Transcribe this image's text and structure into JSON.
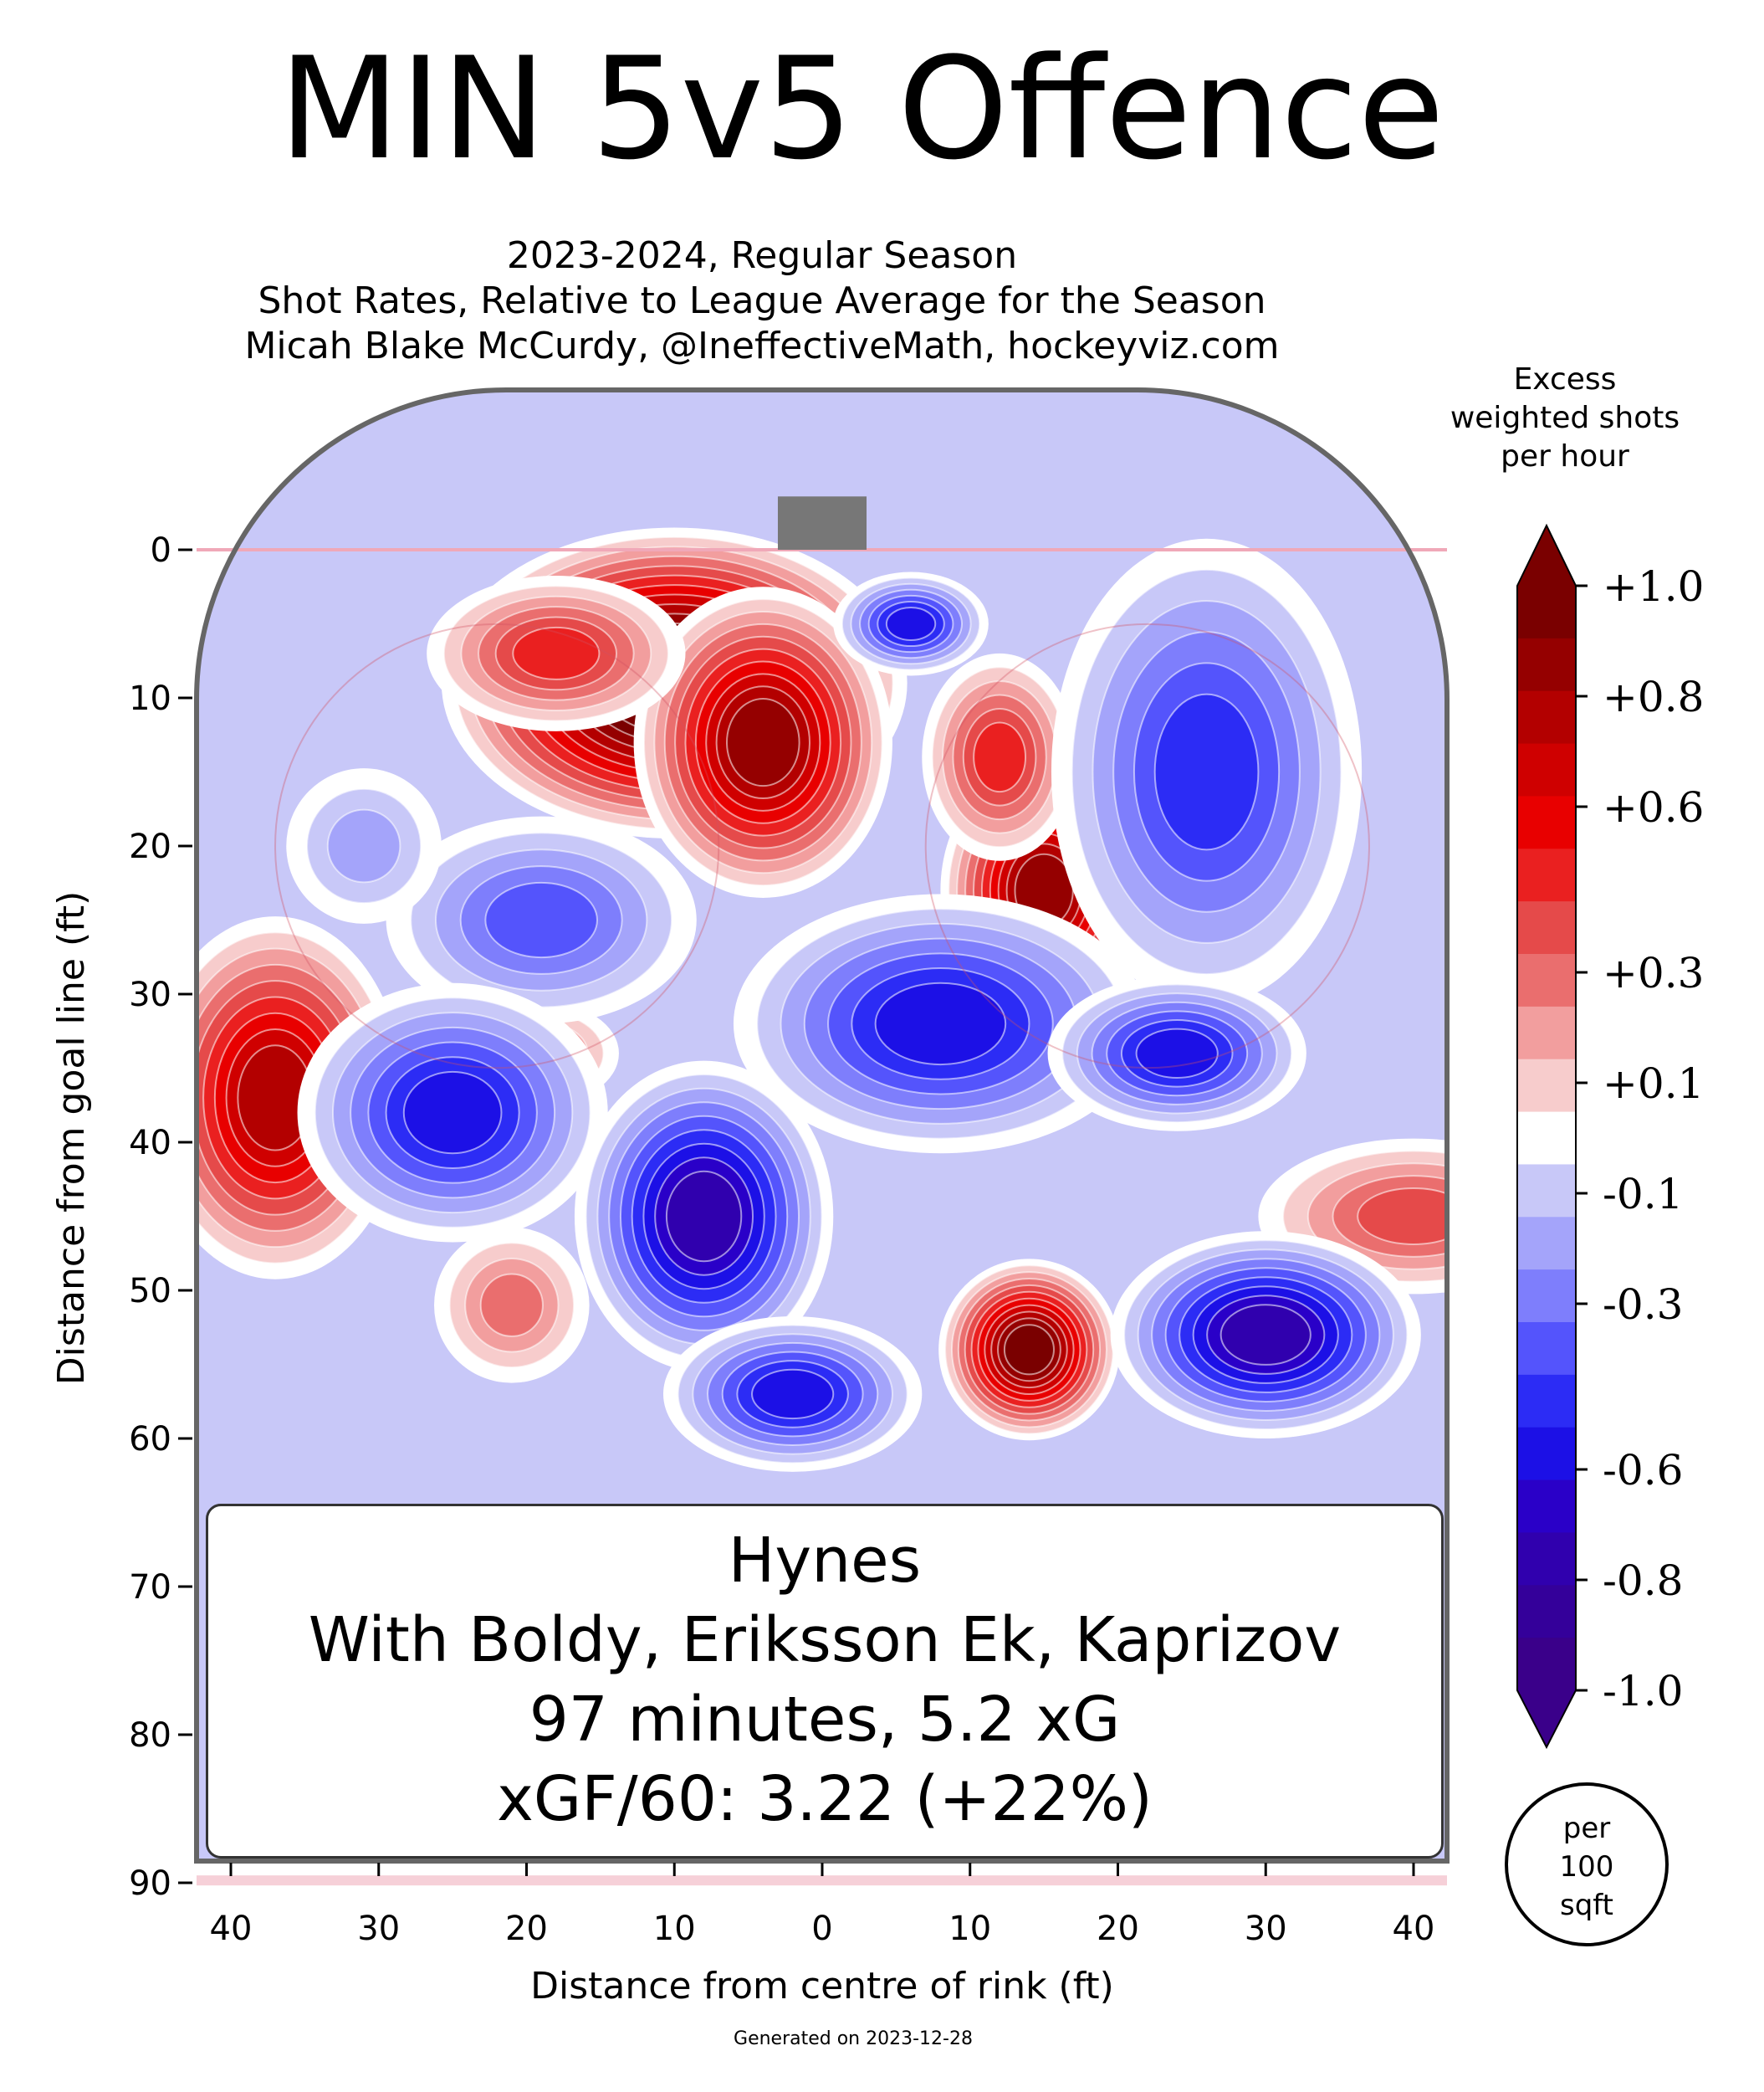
{
  "title": "MIN 5v5 Offence",
  "subtitle": [
    "2023-2024, Regular Season",
    "Shot Rates, Relative to League Average for the Season",
    "Micah Blake McCurdy, @IneffectiveMath, hockeyviz.com"
  ],
  "footer": "Generated on 2023-12-28",
  "annotation": [
    "Hynes",
    "With Boldy, Eriksson Ek, Kaprizov",
    "97 minutes, 5.2 xG",
    "xGF/60: 3.22 (+22%)"
  ],
  "chart_data": {
    "type": "heatmap",
    "title": "MIN 5v5 Offence",
    "xlabel": "Distance from centre of rink (ft)",
    "ylabel": "Distance from goal line (ft)",
    "x_ticks": [
      {
        "v": -40,
        "label": "40"
      },
      {
        "v": -30,
        "label": "30"
      },
      {
        "v": -20,
        "label": "20"
      },
      {
        "v": -10,
        "label": "10"
      },
      {
        "v": 0,
        "label": "0"
      },
      {
        "v": 10,
        "label": "10"
      },
      {
        "v": 20,
        "label": "20"
      },
      {
        "v": 30,
        "label": "30"
      },
      {
        "v": 40,
        "label": "40"
      }
    ],
    "y_ticks": [
      0,
      10,
      20,
      30,
      40,
      50,
      60,
      70,
      80,
      90
    ],
    "xlim": [
      -42.5,
      42.5
    ],
    "ylim": [
      -11,
      90
    ],
    "colorbar": {
      "label": [
        "Excess",
        "weighted shots",
        "per hour"
      ],
      "range": [
        -1.0,
        1.0
      ],
      "tick_labels": [
        {
          "v": 1.0,
          "label": "+1.0"
        },
        {
          "v": 0.8,
          "label": "+0.8"
        },
        {
          "v": 0.6,
          "label": "+0.6"
        },
        {
          "v": 0.3,
          "label": "+0.3"
        },
        {
          "v": 0.1,
          "label": "+0.1"
        },
        {
          "v": -0.1,
          "label": "-0.1"
        },
        {
          "v": -0.3,
          "label": "-0.3"
        },
        {
          "v": -0.6,
          "label": "-0.6"
        },
        {
          "v": -0.8,
          "label": "-0.8"
        },
        {
          "v": -1.0,
          "label": "-1.0"
        }
      ],
      "unit": [
        "per",
        "100",
        "sqft"
      ],
      "levels": [
        {
          "v": 1.0,
          "color": "#7a0000"
        },
        {
          "v": 0.9,
          "color": "#950000"
        },
        {
          "v": 0.8,
          "color": "#b30000"
        },
        {
          "v": 0.7,
          "color": "#cf0000"
        },
        {
          "v": 0.6,
          "color": "#e80000"
        },
        {
          "v": 0.5,
          "color": "#ea2020"
        },
        {
          "v": 0.4,
          "color": "#e54a4a"
        },
        {
          "v": 0.3,
          "color": "#ea6e6e"
        },
        {
          "v": 0.2,
          "color": "#f29e9e"
        },
        {
          "v": 0.1,
          "color": "#f7cccc"
        },
        {
          "v": 0.0,
          "color": "#ffffff"
        },
        {
          "v": -0.1,
          "color": "#c8c8f8"
        },
        {
          "v": -0.2,
          "color": "#a4a4fa"
        },
        {
          "v": -0.3,
          "color": "#7e7efc"
        },
        {
          "v": -0.4,
          "color": "#5454fc"
        },
        {
          "v": -0.5,
          "color": "#2c2cf5"
        },
        {
          "v": -0.6,
          "color": "#1c10e6"
        },
        {
          "v": -0.7,
          "color": "#2a00c8"
        },
        {
          "v": -0.8,
          "color": "#3000ae"
        },
        {
          "v": -0.9,
          "color": "#34009a"
        },
        {
          "v": -1.0,
          "color": "#3a008a"
        }
      ]
    },
    "hotspots": [
      {
        "x": -10,
        "y": 9,
        "value": 1.2,
        "rx": 9,
        "ry": 6
      },
      {
        "x": -4,
        "y": 13,
        "value": 0.9,
        "rx": 5,
        "ry": 6
      },
      {
        "x": -18,
        "y": 7,
        "value": 0.5,
        "rx": 5,
        "ry": 3
      },
      {
        "x": 15,
        "y": 23,
        "value": 0.9,
        "rx": 4,
        "ry": 5
      },
      {
        "x": 12,
        "y": 14,
        "value": 0.5,
        "rx": 3,
        "ry": 4
      },
      {
        "x": -37,
        "y": 37,
        "value": 0.8,
        "rx": 5,
        "ry": 7
      },
      {
        "x": -19,
        "y": 34,
        "value": 0.3,
        "rx": 3,
        "ry": 2
      },
      {
        "x": -21,
        "y": 51,
        "value": 0.3,
        "rx": 3,
        "ry": 3
      },
      {
        "x": 14,
        "y": 54,
        "value": 1.0,
        "rx": 3.5,
        "ry": 3.5
      },
      {
        "x": 40,
        "y": 45,
        "value": 0.4,
        "rx": 6,
        "ry": 3
      },
      {
        "x": 6,
        "y": 5,
        "value": -0.6,
        "rx": 3,
        "ry": 2
      },
      {
        "x": 26,
        "y": 15,
        "value": -0.5,
        "rx": 6,
        "ry": 9
      },
      {
        "x": -19,
        "y": 25,
        "value": -0.4,
        "rx": 6,
        "ry": 4
      },
      {
        "x": -25,
        "y": 38,
        "value": -0.6,
        "rx": 6,
        "ry": 5
      },
      {
        "x": -8,
        "y": 45,
        "value": -0.8,
        "rx": 5,
        "ry": 6
      },
      {
        "x": -2,
        "y": 57,
        "value": -0.6,
        "rx": 5,
        "ry": 3
      },
      {
        "x": 8,
        "y": 32,
        "value": -0.6,
        "rx": 8,
        "ry": 5
      },
      {
        "x": 24,
        "y": 34,
        "value": -0.6,
        "rx": 5,
        "ry": 3
      },
      {
        "x": 30,
        "y": 53,
        "value": -0.8,
        "rx": 6,
        "ry": 4
      },
      {
        "x": -31,
        "y": 20,
        "value": -0.2,
        "rx": 3,
        "ry": 3
      }
    ]
  }
}
